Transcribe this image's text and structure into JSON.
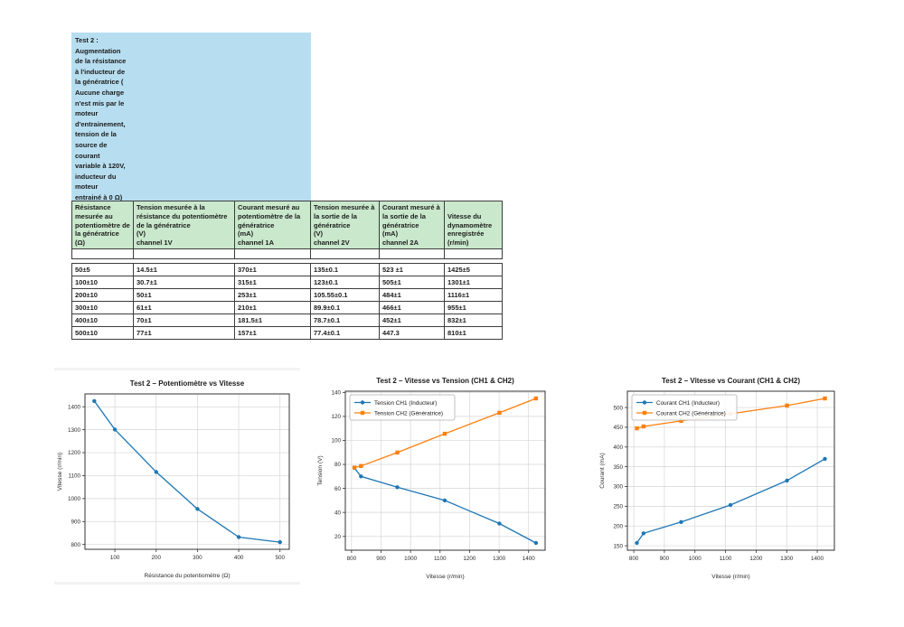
{
  "note_box": {
    "bg_color": "#b7def0",
    "text": "Test 2 :\nAugmentation\nde la résistance\nà l'inducteur de\nla génératrice (\nAucune charge\nn'est mis par le\nmoteur\nd'entrainement,\ntension de la\nsource de\ncourant\nvariable à 120V,\ninducteur du\nmoteur\nentrainé à 0 Ω)"
  },
  "table": {
    "header_bg": "#c9e8cc",
    "headers": [
      "Résistance mesurée au potentiomètre de la génératrice\n(Ω)",
      "Tension mesurée à la résistance du potentiomètre de la génératrice\n(V)\nchannel 1V",
      "Courant mesuré au potentiomètre de la génératrice\n(mA)\nchannel 1A",
      "Tension mesurée à la sortie de la génératrice\n(V)\nchannel 2V",
      "Courant mesuré à la sortie de la génératrice\n(mA)\nchannel 2A",
      "Vitesse du dynamomètre enregistrée\n(r/min)"
    ],
    "rows": [
      [
        "50±5",
        "14.5±1",
        "370±1",
        "135±0.1",
        "523 ±1",
        "1425±5"
      ],
      [
        "100±10",
        "30.7±1",
        "315±1",
        "123±0.1",
        "505±1",
        "1301±1"
      ],
      [
        "200±10",
        "50±1",
        "253±1",
        "105.55±0.1",
        "484±1",
        "1116±1"
      ],
      [
        "300±10",
        "61±1",
        "210±1",
        "89.9±0.1",
        "466±1",
        "955±1"
      ],
      [
        "400±10",
        "70±1",
        "181.5±1",
        "78.7±0.1",
        "452±1",
        "832±1"
      ],
      [
        "500±10",
        "77±1",
        "157±1",
        "77.4±0.1",
        "447.3",
        "810±1"
      ]
    ]
  },
  "chart_data": [
    {
      "type": "line",
      "title": "Test 2 – Potentiomètre vs Vitesse",
      "xlabel": "Résistance du potentiomètre (Ω)",
      "ylabel": "Vitesse (r/min)",
      "x": [
        50,
        100,
        200,
        300,
        400,
        500
      ],
      "series": [
        {
          "name": "Vitesse",
          "color": "#1f77b4",
          "marker": "circle",
          "values": [
            1425,
            1301,
            1116,
            955,
            832,
            810
          ]
        }
      ],
      "xticks": [
        100,
        200,
        300,
        400,
        500
      ],
      "yticks": [
        800,
        900,
        1000,
        1100,
        1200,
        1300,
        1400
      ],
      "xlim": [
        27.5,
        522.5
      ],
      "ylim": [
        779,
        1456
      ],
      "grid": true,
      "legend": false
    },
    {
      "type": "line",
      "title": "Test 2 – Vitesse vs Tension (CH1 & CH2)",
      "xlabel": "Vitesse (r/min)",
      "ylabel": "Tension (V)",
      "x": [
        810,
        832,
        955,
        1116,
        1301,
        1425
      ],
      "series": [
        {
          "name": "Tension CH1 (Inducteur)",
          "color": "#1f77b4",
          "marker": "circle",
          "values": [
            77,
            70,
            61,
            50,
            30.7,
            14.5
          ]
        },
        {
          "name": "Tension CH2 (Génératrice)",
          "color": "#ff7f0e",
          "marker": "square",
          "values": [
            77.4,
            78.7,
            89.9,
            105.55,
            123,
            135
          ]
        }
      ],
      "xticks": [
        800,
        900,
        1000,
        1100,
        1200,
        1300,
        1400
      ],
      "yticks": [
        20,
        40,
        60,
        80,
        100,
        120,
        140
      ],
      "xlim": [
        779,
        1456
      ],
      "ylim": [
        8.5,
        141
      ],
      "grid": true,
      "legend": true,
      "legend_position": "upper left"
    },
    {
      "type": "line",
      "title": "Test 2 – Vitesse vs Courant (CH1 & CH2)",
      "xlabel": "Vitesse (r/min)",
      "ylabel": "Courant (mA)",
      "x": [
        810,
        832,
        955,
        1116,
        1301,
        1425
      ],
      "series": [
        {
          "name": "Courant CH1 (Inducteur)",
          "color": "#1f77b4",
          "marker": "circle",
          "values": [
            157,
            181.5,
            210,
            253,
            315,
            370
          ]
        },
        {
          "name": "Courant CH2 (Génératrice)",
          "color": "#ff7f0e",
          "marker": "square",
          "values": [
            447.3,
            452,
            466,
            484,
            505,
            523
          ]
        }
      ],
      "xticks": [
        800,
        900,
        1000,
        1100,
        1200,
        1300,
        1400
      ],
      "yticks": [
        150,
        200,
        250,
        300,
        350,
        400,
        450,
        500
      ],
      "xlim": [
        779,
        1456
      ],
      "ylim": [
        138.7,
        541.3
      ],
      "grid": true,
      "legend": true,
      "legend_position": "upper left"
    }
  ]
}
